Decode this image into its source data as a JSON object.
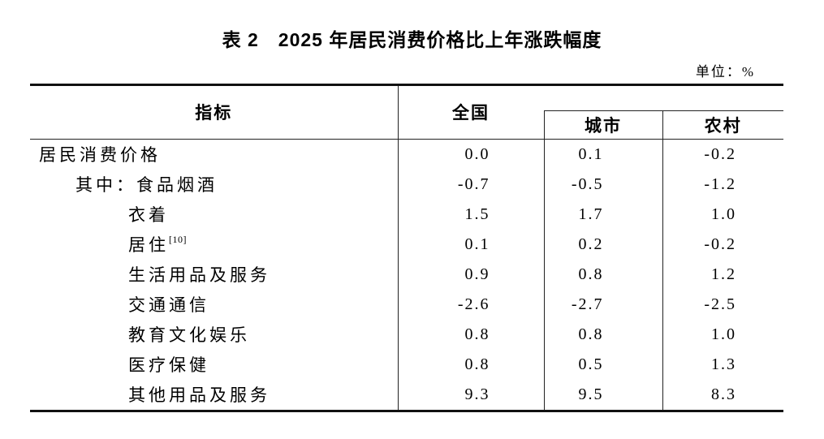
{
  "title": "表 2　2025 年居民消费价格比上年涨跌幅度",
  "unit_label": "单位：%",
  "table": {
    "columns": {
      "indicator": "指标",
      "national": "全国",
      "city": "城市",
      "rural": "农村"
    },
    "rows": [
      {
        "indicator": "居民消费价格",
        "indent": 0,
        "note": "",
        "national": "0.0",
        "city": "0.1",
        "rural": "-0.2"
      },
      {
        "indicator": "其中：食品烟酒",
        "indent": 1,
        "note": "",
        "national": "-0.7",
        "city": "-0.5",
        "rural": "-1.2"
      },
      {
        "indicator": "衣着",
        "indent": 2,
        "note": "",
        "national": "1.5",
        "city": "1.7",
        "rural": "1.0"
      },
      {
        "indicator": "居住",
        "indent": 2,
        "note": "[10]",
        "national": "0.1",
        "city": "0.2",
        "rural": "-0.2"
      },
      {
        "indicator": "生活用品及服务",
        "indent": 2,
        "note": "",
        "national": "0.9",
        "city": "0.8",
        "rural": "1.2"
      },
      {
        "indicator": "交通通信",
        "indent": 2,
        "note": "",
        "national": "-2.6",
        "city": "-2.7",
        "rural": "-2.5"
      },
      {
        "indicator": "教育文化娱乐",
        "indent": 2,
        "note": "",
        "national": "0.8",
        "city": "0.8",
        "rural": "1.0"
      },
      {
        "indicator": "医疗保健",
        "indent": 2,
        "note": "",
        "national": "0.8",
        "city": "0.5",
        "rural": "1.3"
      },
      {
        "indicator": "其他用品及服务",
        "indent": 2,
        "note": "",
        "national": "9.3",
        "city": "9.5",
        "rural": "8.3"
      }
    ]
  }
}
